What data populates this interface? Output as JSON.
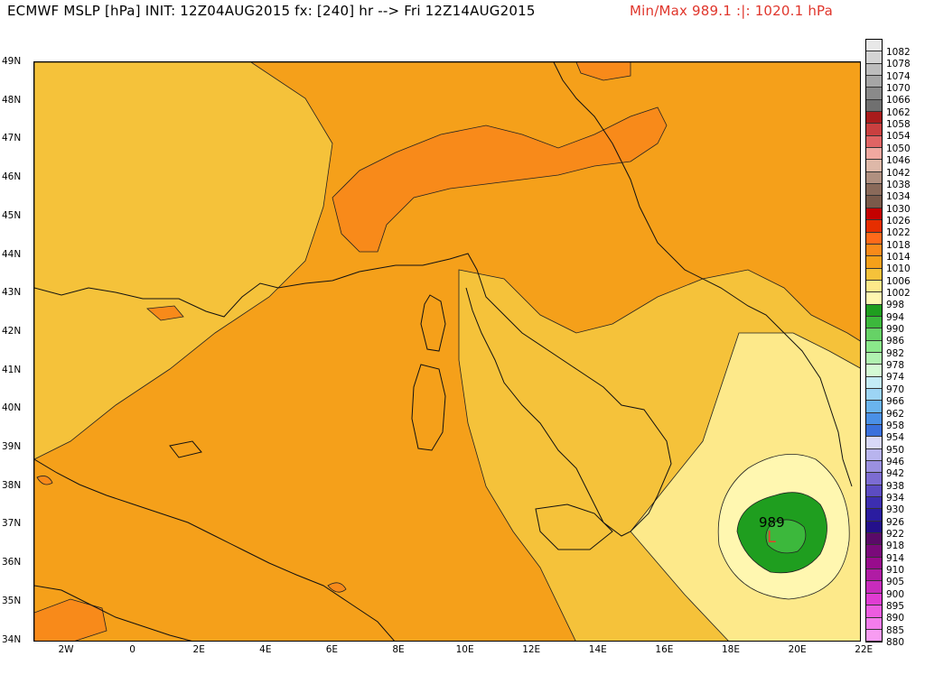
{
  "header": {
    "title": "ECMWF MSLP [hPa] INIT: 12Z04AUG2015 fx: [240] hr --> Fri 12Z14AUG2015",
    "minmax": "Min/Max 989.1 :|: 1020.1 hPa",
    "minmax_color": "#e0362c"
  },
  "axes": {
    "lat_labels": [
      "49N",
      "48N",
      "47N",
      "46N",
      "45N",
      "44N",
      "43N",
      "42N",
      "41N",
      "40N",
      "39N",
      "38N",
      "37N",
      "36N",
      "35N",
      "34N"
    ],
    "lon_labels": [
      "2W",
      "0",
      "2E",
      "4E",
      "6E",
      "8E",
      "10E",
      "12E",
      "14E",
      "16E",
      "18E",
      "20E",
      "22E"
    ]
  },
  "scale": {
    "labels": [
      "1082",
      "1078",
      "1074",
      "1070",
      "1066",
      "1062",
      "1058",
      "1054",
      "1050",
      "1046",
      "1042",
      "1038",
      "1034",
      "1030",
      "1026",
      "1022",
      "1018",
      "1014",
      "1010",
      "1006",
      "1002",
      "998",
      "994",
      "990",
      "986",
      "982",
      "978",
      "974",
      "970",
      "966",
      "962",
      "958",
      "954",
      "950",
      "946",
      "942",
      "938",
      "934",
      "930",
      "926",
      "922",
      "918",
      "914",
      "910",
      "905",
      "900",
      "895",
      "890",
      "885",
      "880"
    ],
    "colors": [
      "#e8e8e8",
      "#d4d4d4",
      "#bdbdbd",
      "#a6a6a6",
      "#8a8a8a",
      "#707070",
      "#a91c1c",
      "#c94040",
      "#e06464",
      "#f0a8a0",
      "#deb8a8",
      "#b09080",
      "#8a6a5a",
      "#7a5a4a",
      "#c40000",
      "#e62e00",
      "#ff6a1a",
      "#f88a1a",
      "#f5a01a",
      "#f5c23a",
      "#fde98a",
      "#fff7b0",
      "#1f9e1f",
      "#3cb83c",
      "#66d266",
      "#8ae88a",
      "#b0f2b0",
      "#d4fad4",
      "#c4ecf6",
      "#9cd4f4",
      "#6ab4ee",
      "#4a90e6",
      "#3a70dc",
      "#d8d8f8",
      "#b8b4ee",
      "#9a90e0",
      "#7c6cd2",
      "#5c4cc2",
      "#3c2eb0",
      "#2a1ca0",
      "#24108a",
      "#5a0a68",
      "#7a0a7a",
      "#980c8c",
      "#b01ca4",
      "#c82cbc",
      "#e03cd2",
      "#ec5ce0",
      "#f47cec",
      "#f89cf2"
    ]
  },
  "map": {
    "labels": {
      "isobar_value": "989",
      "low_marker": "L"
    },
    "colors": {
      "band_1014": "#f88a1a",
      "band_1010": "#f5a01a",
      "band_1006": "#f5c23a",
      "band_1002": "#fde98a",
      "band_998": "#fff7b0",
      "band_994": "#1f9e1f",
      "band_990": "#3cb83c",
      "band_high": "#ff6a1a",
      "coast": "#111111"
    }
  }
}
